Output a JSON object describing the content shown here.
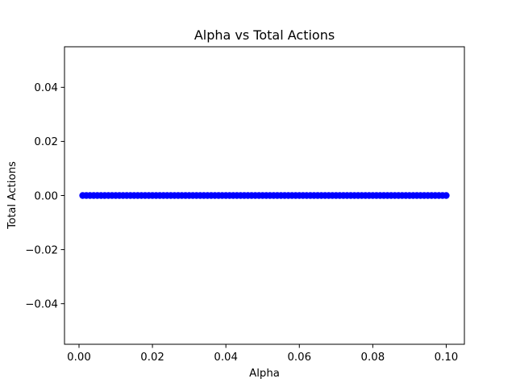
{
  "chart_data": {
    "type": "scatter",
    "title": "Alpha vs Total Actions",
    "xlabel": "Alpha",
    "ylabel": "Total Actions",
    "xlim": [
      -0.00395,
      0.10495
    ],
    "ylim": [
      -0.055,
      0.055
    ],
    "xticks": [
      0.0,
      0.02,
      0.04,
      0.06,
      0.08,
      0.1
    ],
    "xtick_labels": [
      "0.00",
      "0.02",
      "0.04",
      "0.06",
      "0.08",
      "0.10"
    ],
    "yticks": [
      -0.04,
      -0.02,
      0.0,
      0.02,
      0.04
    ],
    "ytick_labels": [
      "−0.04",
      "−0.02",
      "0.00",
      "0.02",
      "0.04"
    ],
    "grid": false,
    "marker_color": "#0000ff",
    "series": [
      {
        "x_start": 0.001,
        "x_end": 0.1,
        "x_step": 0.001,
        "y_constant": 0
      }
    ]
  }
}
